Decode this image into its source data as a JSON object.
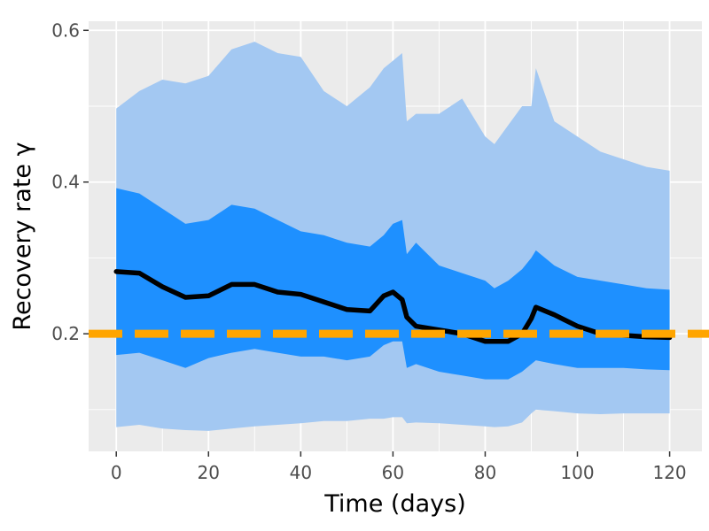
{
  "chart_data": {
    "type": "area",
    "title": "",
    "xlabel": "Time (days)",
    "ylabel": "Recovery rate γ",
    "xlim": [
      -6,
      127
    ],
    "ylim": [
      0.045,
      0.612
    ],
    "x_ticks": [
      0,
      20,
      40,
      60,
      80,
      100,
      120
    ],
    "y_ticks": [
      0.2,
      0.4,
      0.6
    ],
    "y_tick_labels": [
      "0.2",
      "0.4",
      "0.6"
    ],
    "grid": true,
    "legend": "none",
    "colors": {
      "panel_background": "#ebebeb",
      "grid": "#ffffff",
      "outer_band": "#a3c8f2",
      "inner_band": "#1e90ff",
      "median_line": "#000000",
      "reference_line": "#ffa500"
    },
    "x": [
      0,
      5,
      10,
      15,
      20,
      25,
      30,
      35,
      40,
      45,
      50,
      55,
      58,
      60,
      62,
      63,
      65,
      70,
      75,
      80,
      82,
      85,
      88,
      90,
      91,
      95,
      100,
      105,
      110,
      115,
      120
    ],
    "series": [
      {
        "name": "",
        "role": "outer_upper",
        "values": [
          0.497,
          0.52,
          0.535,
          0.53,
          0.54,
          0.575,
          0.585,
          0.57,
          0.565,
          0.52,
          0.5,
          0.525,
          0.55,
          0.56,
          0.57,
          0.48,
          0.49,
          0.49,
          0.51,
          0.46,
          0.45,
          0.475,
          0.5,
          0.5,
          0.55,
          0.48,
          0.46,
          0.44,
          0.43,
          0.42,
          0.415
        ]
      },
      {
        "name": "",
        "role": "inner_upper",
        "values": [
          0.392,
          0.385,
          0.365,
          0.345,
          0.35,
          0.37,
          0.365,
          0.35,
          0.335,
          0.33,
          0.32,
          0.315,
          0.33,
          0.345,
          0.35,
          0.305,
          0.32,
          0.29,
          0.28,
          0.27,
          0.26,
          0.27,
          0.285,
          0.3,
          0.31,
          0.29,
          0.275,
          0.27,
          0.265,
          0.26,
          0.258
        ]
      },
      {
        "name": "",
        "role": "median",
        "values": [
          0.282,
          0.28,
          0.262,
          0.248,
          0.25,
          0.265,
          0.265,
          0.255,
          0.252,
          0.242,
          0.232,
          0.23,
          0.25,
          0.255,
          0.245,
          0.222,
          0.21,
          0.205,
          0.2,
          0.19,
          0.19,
          0.19,
          0.2,
          0.22,
          0.235,
          0.225,
          0.21,
          0.2,
          0.198,
          0.196,
          0.195
        ]
      },
      {
        "name": "",
        "role": "inner_lower",
        "values": [
          0.172,
          0.175,
          0.165,
          0.155,
          0.168,
          0.175,
          0.18,
          0.175,
          0.17,
          0.17,
          0.165,
          0.17,
          0.185,
          0.19,
          0.19,
          0.155,
          0.16,
          0.15,
          0.145,
          0.14,
          0.14,
          0.14,
          0.15,
          0.16,
          0.165,
          0.16,
          0.155,
          0.155,
          0.155,
          0.153,
          0.152
        ]
      },
      {
        "name": "",
        "role": "outer_lower",
        "values": [
          0.077,
          0.08,
          0.075,
          0.073,
          0.072,
          0.075,
          0.078,
          0.08,
          0.082,
          0.085,
          0.085,
          0.088,
          0.088,
          0.09,
          0.09,
          0.082,
          0.083,
          0.082,
          0.08,
          0.078,
          0.077,
          0.078,
          0.083,
          0.095,
          0.1,
          0.098,
          0.095,
          0.094,
          0.095,
          0.095,
          0.095
        ]
      }
    ],
    "reference_line": {
      "y": 0.2,
      "style": "dashed"
    }
  }
}
